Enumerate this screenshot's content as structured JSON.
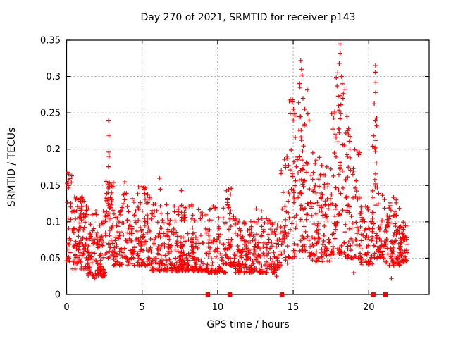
{
  "chart_data": {
    "type": "scatter",
    "title": "Day 270 of 2021, SRMTID for receiver p143",
    "xlabel": "GPS time / hours",
    "ylabel": "SRMTID / TECUs",
    "xlim": [
      0,
      24
    ],
    "ylim": [
      0,
      0.35
    ],
    "xticks": [
      0,
      5,
      10,
      15,
      20
    ],
    "xtick_labels": [
      "0",
      "5",
      "10",
      "15",
      "20"
    ],
    "yticks": [
      0,
      0.05,
      0.1,
      0.15,
      0.2,
      0.25,
      0.3,
      0.35
    ],
    "ytick_labels": [
      "0",
      "0.05",
      "0.1",
      "0.15",
      "0.2",
      "0.25",
      "0.3",
      "0.35"
    ],
    "grid": true,
    "legend": "none",
    "marker": "plus",
    "marker_color": "#ff0000",
    "grid_color": "#9b9b9b",
    "border_color": "#000000",
    "axis_markers": {
      "shape": "filled-square",
      "color": "#ff0000",
      "y": 0,
      "x": [
        9.35,
        10.8,
        14.25,
        20.3,
        21.1
      ]
    },
    "seed": 7,
    "point_bands": [
      {
        "x0": 0.0,
        "x1": 0.5,
        "n": 30,
        "ylo": 0.045,
        "yhi": 0.17,
        "p": 1.6
      },
      {
        "x0": 0.4,
        "x1": 1.3,
        "n": 90,
        "ylo": 0.035,
        "yhi": 0.135,
        "p": 1.8
      },
      {
        "x0": 1.3,
        "x1": 2.55,
        "n": 115,
        "ylo": 0.025,
        "yhi": 0.12,
        "p": 1.8
      },
      {
        "x0": 2.55,
        "x1": 3.1,
        "n": 55,
        "ylo": 0.05,
        "yhi": 0.16,
        "p": 1.4
      },
      {
        "x0": 3.1,
        "x1": 3.7,
        "n": 45,
        "ylo": 0.04,
        "yhi": 0.12,
        "p": 1.6
      },
      {
        "x0": 3.7,
        "x1": 4.0,
        "n": 18,
        "ylo": 0.05,
        "yhi": 0.145,
        "p": 1.3
      },
      {
        "x0": 4.0,
        "x1": 4.6,
        "n": 45,
        "ylo": 0.04,
        "yhi": 0.125,
        "p": 1.6
      },
      {
        "x0": 4.6,
        "x1": 5.6,
        "n": 80,
        "ylo": 0.04,
        "yhi": 0.15,
        "p": 2.0
      },
      {
        "x0": 5.6,
        "x1": 9.35,
        "n": 300,
        "ylo": 0.032,
        "yhi": 0.125,
        "p": 2.0
      },
      {
        "x0": 9.35,
        "x1": 10.55,
        "n": 90,
        "ylo": 0.03,
        "yhi": 0.12,
        "p": 1.9
      },
      {
        "x0": 10.55,
        "x1": 11.15,
        "n": 45,
        "ylo": 0.04,
        "yhi": 0.145,
        "p": 1.7
      },
      {
        "x0": 11.15,
        "x1": 14.2,
        "n": 230,
        "ylo": 0.03,
        "yhi": 0.105,
        "p": 1.8
      },
      {
        "x0": 14.2,
        "x1": 14.65,
        "n": 30,
        "ylo": 0.04,
        "yhi": 0.2,
        "p": 1.5
      },
      {
        "x0": 14.65,
        "x1": 15.25,
        "n": 45,
        "ylo": 0.05,
        "yhi": 0.27,
        "p": 1.7
      },
      {
        "x0": 15.25,
        "x1": 16.05,
        "n": 70,
        "ylo": 0.06,
        "yhi": 0.3,
        "p": 1.7
      },
      {
        "x0": 16.05,
        "x1": 17.45,
        "n": 110,
        "ylo": 0.045,
        "yhi": 0.19,
        "p": 1.7
      },
      {
        "x0": 17.45,
        "x1": 18.45,
        "n": 80,
        "ylo": 0.055,
        "yhi": 0.3,
        "p": 1.7
      },
      {
        "x0": 18.45,
        "x1": 19.4,
        "n": 70,
        "ylo": 0.05,
        "yhi": 0.23,
        "p": 1.9
      },
      {
        "x0": 19.4,
        "x1": 20.25,
        "n": 60,
        "ylo": 0.04,
        "yhi": 0.125,
        "p": 1.7
      },
      {
        "x0": 20.25,
        "x1": 20.6,
        "n": 30,
        "ylo": 0.05,
        "yhi": 0.28,
        "p": 1.6
      },
      {
        "x0": 20.6,
        "x1": 21.05,
        "n": 35,
        "ylo": 0.05,
        "yhi": 0.14,
        "p": 1.6
      },
      {
        "x0": 21.05,
        "x1": 22.1,
        "n": 90,
        "ylo": 0.04,
        "yhi": 0.135,
        "p": 1.7
      },
      {
        "x0": 22.1,
        "x1": 22.55,
        "n": 40,
        "ylo": 0.045,
        "yhi": 0.11,
        "p": 1.6
      }
    ],
    "notable_points": [
      [
        0.08,
        0.168
      ],
      [
        0.12,
        0.158
      ],
      [
        0.1,
        0.15
      ],
      [
        0.95,
        0.128
      ],
      [
        1.3,
        0.122
      ],
      [
        1.85,
        0.022
      ],
      [
        2.1,
        0.028
      ],
      [
        2.78,
        0.239
      ],
      [
        2.8,
        0.219
      ],
      [
        2.79,
        0.196
      ],
      [
        2.81,
        0.19
      ],
      [
        2.77,
        0.176
      ],
      [
        2.83,
        0.153
      ],
      [
        2.85,
        0.148
      ],
      [
        3.85,
        0.155
      ],
      [
        4.35,
        0.132
      ],
      [
        4.45,
        0.127
      ],
      [
        5.1,
        0.147
      ],
      [
        5.15,
        0.139
      ],
      [
        5.2,
        0.131
      ],
      [
        6.15,
        0.16
      ],
      [
        6.2,
        0.145
      ],
      [
        7.6,
        0.143
      ],
      [
        9.7,
        0.122
      ],
      [
        10.9,
        0.146
      ],
      [
        10.85,
        0.138
      ],
      [
        12.55,
        0.118
      ],
      [
        12.9,
        0.115
      ],
      [
        13.9,
        0.025
      ],
      [
        14.42,
        0.186
      ],
      [
        14.5,
        0.175
      ],
      [
        14.95,
        0.268
      ],
      [
        15.02,
        0.255
      ],
      [
        15.0,
        0.24
      ],
      [
        15.5,
        0.322
      ],
      [
        15.55,
        0.31
      ],
      [
        15.6,
        0.302
      ],
      [
        15.45,
        0.285
      ],
      [
        15.65,
        0.27
      ],
      [
        15.75,
        0.255
      ],
      [
        16.05,
        0.24
      ],
      [
        16.3,
        0.195
      ],
      [
        16.5,
        0.185
      ],
      [
        17.0,
        0.165
      ],
      [
        18.1,
        0.345
      ],
      [
        18.12,
        0.332
      ],
      [
        18.05,
        0.318
      ],
      [
        17.95,
        0.305
      ],
      [
        17.85,
        0.298
      ],
      [
        17.9,
        0.287
      ],
      [
        18.2,
        0.3
      ],
      [
        18.25,
        0.29
      ],
      [
        18.3,
        0.27
      ],
      [
        18.0,
        0.26
      ],
      [
        17.75,
        0.25
      ],
      [
        18.55,
        0.245
      ],
      [
        18.65,
        0.22
      ],
      [
        18.75,
        0.2
      ],
      [
        18.6,
        0.19
      ],
      [
        19.0,
        0.03
      ],
      [
        20.45,
        0.315
      ],
      [
        20.44,
        0.306
      ],
      [
        20.47,
        0.292
      ],
      [
        20.46,
        0.278
      ],
      [
        20.43,
        0.239
      ],
      [
        20.48,
        0.212
      ],
      [
        20.44,
        0.197
      ],
      [
        20.5,
        0.181
      ],
      [
        20.46,
        0.166
      ],
      [
        20.42,
        0.148
      ],
      [
        21.5,
        0.022
      ]
    ]
  }
}
